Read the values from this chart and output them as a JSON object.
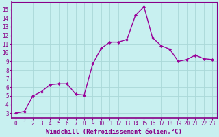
{
  "x": [
    0,
    1,
    2,
    3,
    4,
    5,
    6,
    7,
    8,
    9,
    10,
    11,
    12,
    13,
    14,
    15,
    16,
    17,
    18,
    19,
    20,
    21,
    22,
    23
  ],
  "y": [
    3,
    3.2,
    5,
    5.5,
    6.3,
    6.4,
    6.4,
    5.2,
    5.1,
    8.7,
    10.5,
    11.2,
    11.2,
    11.5,
    14.3,
    15.3,
    11.7,
    10.8,
    10.4,
    9.0,
    9.2,
    9.7,
    9.3,
    9.2
  ],
  "line_color": "#990099",
  "marker": "D",
  "marker_size": 2,
  "linewidth": 1.0,
  "xlabel": "Windchill (Refroidissement éolien,°C)",
  "xlabel_fontsize": 6.5,
  "xlim": [
    -0.5,
    23.5
  ],
  "ylim": [
    2.5,
    15.8
  ],
  "yticks": [
    3,
    4,
    5,
    6,
    7,
    8,
    9,
    10,
    11,
    12,
    13,
    14,
    15
  ],
  "xticks": [
    0,
    1,
    2,
    3,
    4,
    5,
    6,
    7,
    8,
    9,
    10,
    11,
    12,
    13,
    14,
    15,
    16,
    17,
    18,
    19,
    20,
    21,
    22,
    23
  ],
  "background_color": "#c8f0f0",
  "grid_color": "#aad8d8",
  "tick_fontsize": 5.5,
  "tick_color": "#880088",
  "spine_color": "#880088",
  "fig_bg": "#c8f0f0"
}
